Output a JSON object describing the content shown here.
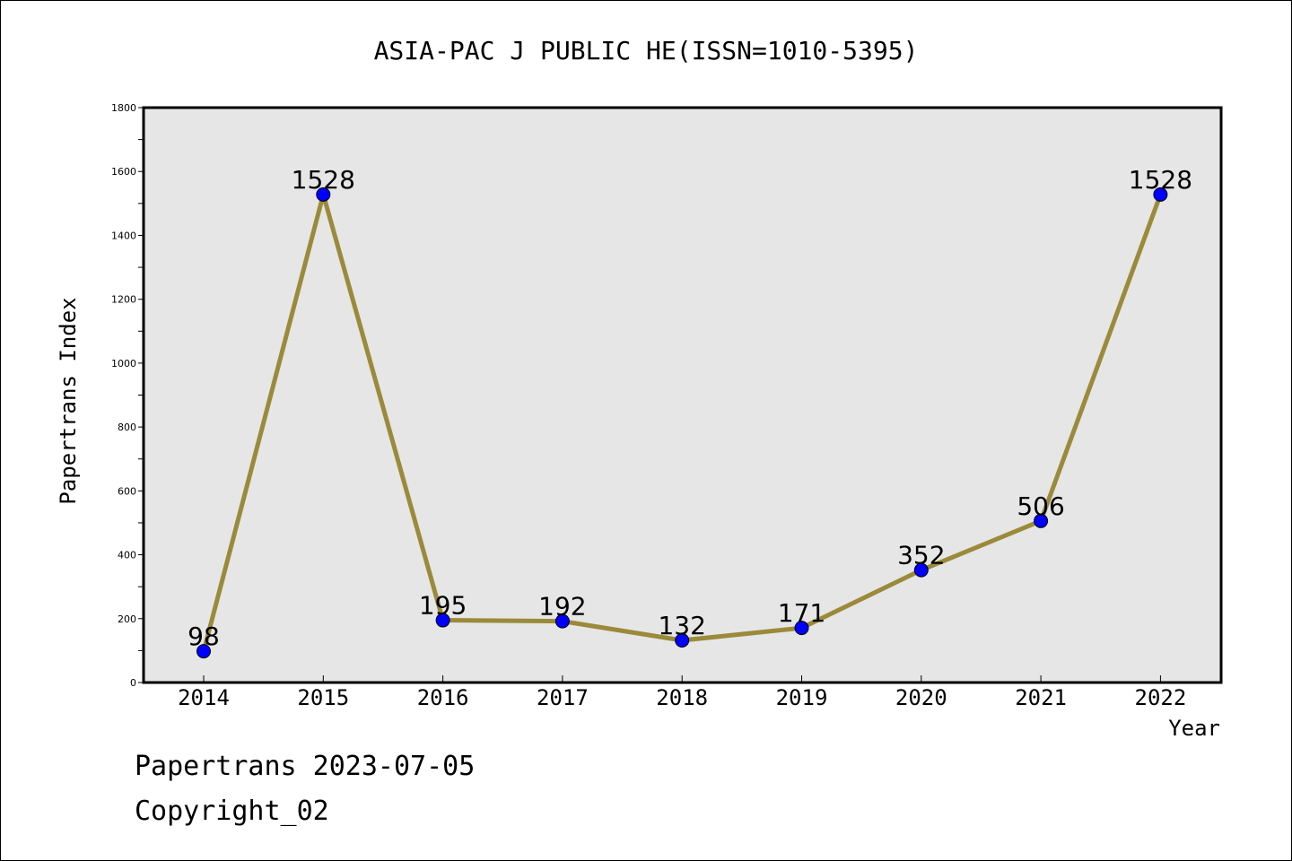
{
  "chart_data": {
    "type": "line",
    "title": "ASIA-PAC J PUBLIC HE(ISSN=1010-5395)",
    "xlabel": "Year",
    "ylabel": "Papertrans Index",
    "categories": [
      "2014",
      "2015",
      "2016",
      "2017",
      "2018",
      "2019",
      "2020",
      "2021",
      "2022"
    ],
    "values": [
      98,
      1528,
      195,
      192,
      132,
      171,
      352,
      506,
      1528
    ],
    "value_labels": [
      "98",
      "1528",
      "195",
      "192",
      "132",
      "171",
      "352",
      "506",
      "1528"
    ],
    "ylim": [
      0,
      1800
    ],
    "yticks": [
      0,
      200,
      400,
      600,
      800,
      1000,
      1200,
      1400,
      1600,
      1800
    ],
    "ytick_labels": [
      "0",
      "200",
      "400",
      "600",
      "800",
      "1000",
      "1200",
      "1400",
      "1600",
      "1800"
    ],
    "grid": false,
    "colors": {
      "line": "#9a8a3a",
      "marker": "#0000ff",
      "plot_background": "#e6e6e6"
    }
  },
  "footer": {
    "line1": "Papertrans 2023-07-05",
    "line2": "Copyright_02"
  }
}
